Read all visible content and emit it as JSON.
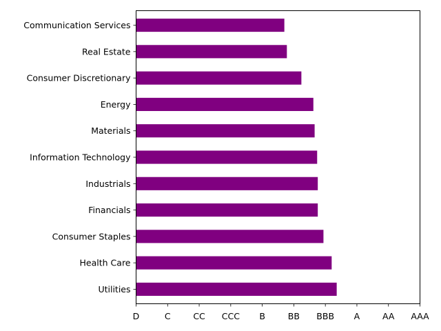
{
  "chart_data": {
    "type": "bar",
    "orientation": "horizontal",
    "title": "",
    "xlabel": "",
    "ylabel": "",
    "categories": [
      "Communication Services",
      "Real Estate",
      "Consumer Discretionary",
      "Energy",
      "Materials",
      "Information Technology",
      "Industrials",
      "Financials",
      "Consumer Staples",
      "Health Care",
      "Utilities"
    ],
    "values": [
      4.7,
      4.78,
      5.24,
      5.62,
      5.66,
      5.74,
      5.76,
      5.76,
      5.94,
      6.2,
      6.36
    ],
    "x_ticks": [
      "D",
      "C",
      "CC",
      "CCC",
      "B",
      "BB",
      "BBB",
      "A",
      "AA",
      "AAA"
    ],
    "xlim": [
      0,
      9
    ],
    "grid": false,
    "bar_color": "#800080"
  }
}
